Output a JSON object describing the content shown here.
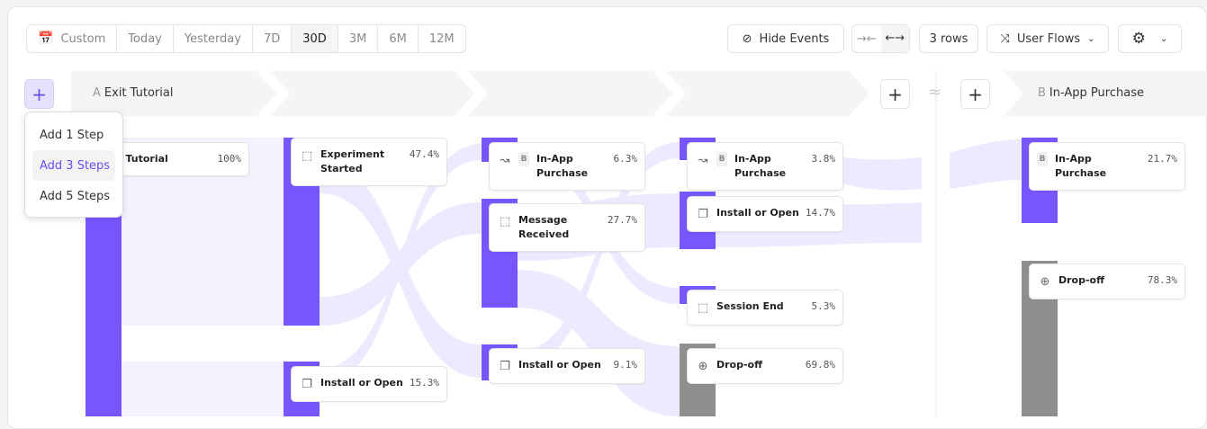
{
  "toolbar": {
    "date_ranges": [
      "Custom",
      "Today",
      "Yesterday",
      "7D",
      "30D",
      "3M",
      "6M",
      "12M"
    ],
    "active_range": "30D",
    "hide_events": "Hide Events",
    "rows": "3 rows",
    "view": "User Flows"
  },
  "steps": {
    "a_letter": "A",
    "a_label": "Exit Tutorial",
    "b_letter": "B",
    "b_label": "In-App Purchase",
    "gap_symbol": "≈"
  },
  "add_menu": {
    "items": [
      "Add 1 Step",
      "Add 3 Steps",
      "Add 5 Steps"
    ],
    "highlighted": "Add 3 Steps"
  },
  "nodes": [
    {
      "name": "Exit Tutorial",
      "pct": "100%"
    },
    {
      "name": "Experiment Started",
      "pct": "47.4%"
    },
    {
      "name": "Install or Open",
      "pct": "15.3%"
    },
    {
      "name": "In-App Purchase",
      "pct": "6.3%",
      "badge": "B"
    },
    {
      "name": "Message Received",
      "pct": "27.7%"
    },
    {
      "name": "Install or Open",
      "pct": "9.1%"
    },
    {
      "name": "In-App Purchase",
      "pct": "3.8%",
      "badge": "B"
    },
    {
      "name": "Install or Open",
      "pct": "14.7%"
    },
    {
      "name": "Session End",
      "pct": "5.3%"
    },
    {
      "name": "Drop-off",
      "pct": "69.8%"
    },
    {
      "name": "In-App Purchase",
      "pct": "21.7%",
      "badge": "B"
    },
    {
      "name": "Drop-off",
      "pct": "78.3%"
    }
  ],
  "colors": {
    "accent": "#7856ff",
    "dropoff": "#8f8f8f",
    "flow": "#ebe6ff"
  }
}
